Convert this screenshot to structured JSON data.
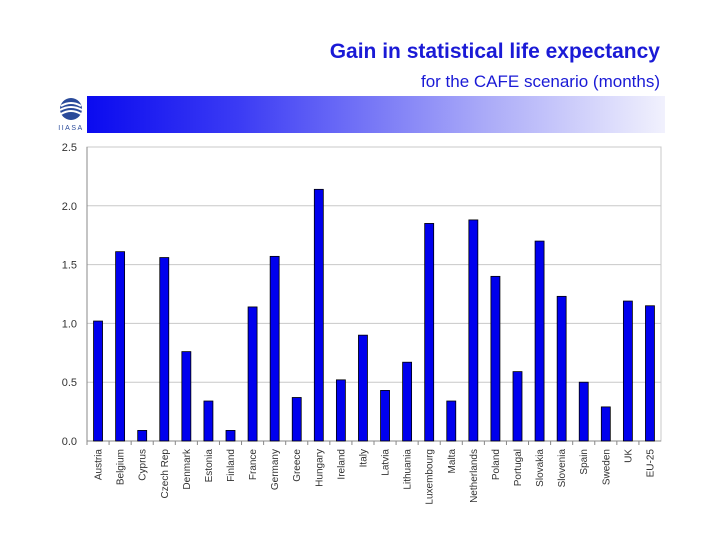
{
  "header": {
    "title": "Gain in statistical life expectancy",
    "subtitle": "for the CAFE scenario (months)",
    "logo_text": "IIASA"
  },
  "colors": {
    "title": "#1a1ad6",
    "bar": "#0000ee",
    "bar_edge": "#000000",
    "grid": "#c8c8c8",
    "axis_label": "#333333"
  },
  "chart_data": {
    "type": "bar",
    "title": "Gain in statistical life expectancy",
    "subtitle": "for the CAFE scenario (months)",
    "xlabel": "",
    "ylabel": "",
    "ylim": [
      0,
      2.5
    ],
    "yticks": [
      "0.0",
      "0.5",
      "1.0",
      "1.5",
      "2.0",
      "2.5"
    ],
    "grid": true,
    "categories": [
      "Austria",
      "Belgium",
      "Cyprus",
      "Czech Rep",
      "Denmark",
      "Estonia",
      "Finland",
      "France",
      "Germany",
      "Greece",
      "Hungary",
      "Ireland",
      "Italy",
      "Latvia",
      "Lithuania",
      "Luxembourg",
      "Malta",
      "Netherlands",
      "Poland",
      "Portugal",
      "Slovakia",
      "Slovenia",
      "Spain",
      "Sweden",
      "UK",
      "EU-25"
    ],
    "values": [
      1.02,
      1.61,
      0.09,
      1.56,
      0.76,
      0.34,
      0.09,
      1.14,
      1.57,
      0.37,
      2.14,
      0.52,
      0.9,
      0.43,
      0.67,
      1.85,
      0.34,
      1.88,
      1.4,
      0.59,
      1.7,
      1.23,
      0.5,
      0.29,
      1.19,
      1.15
    ]
  }
}
